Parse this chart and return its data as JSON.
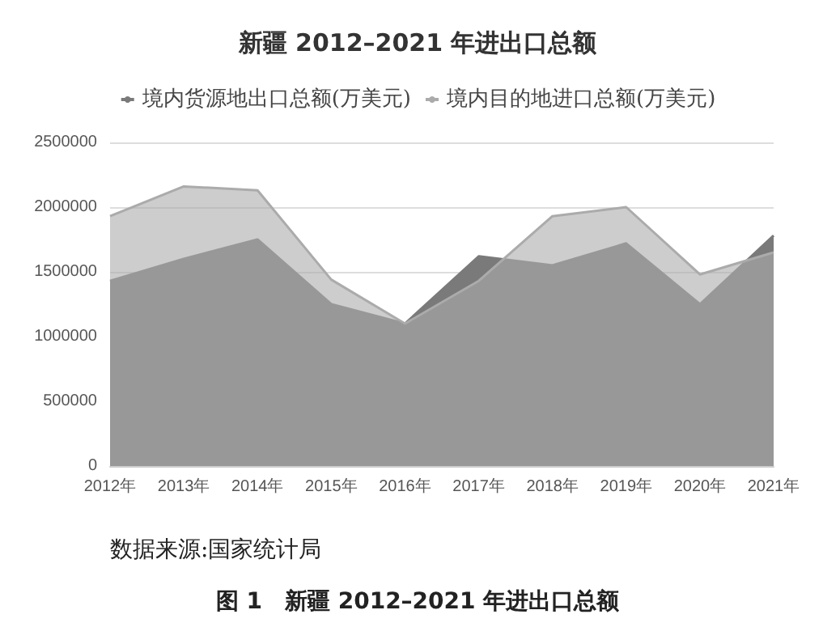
{
  "chart_data": {
    "type": "area",
    "title": "新疆 2012–2021 年进出口总额",
    "categories": [
      "2012年",
      "2013年",
      "2014年",
      "2015年",
      "2016年",
      "2017年",
      "2018年",
      "2019年",
      "2020年",
      "2021年"
    ],
    "series": [
      {
        "name": "境内货源地出口总额(万美元)",
        "color": "#7a7a7a",
        "values": [
          1430000,
          1600000,
          1750000,
          1250000,
          1100000,
          1620000,
          1550000,
          1720000,
          1250000,
          1780000
        ]
      },
      {
        "name": "境内目的地进口总额(万美元)",
        "color": "#ababab",
        "values": [
          1930000,
          2160000,
          2130000,
          1440000,
          1100000,
          1430000,
          1930000,
          2000000,
          1480000,
          1650000
        ]
      }
    ],
    "ylim": [
      0,
      2500000
    ],
    "yticks": [
      0,
      500000,
      1000000,
      1500000,
      2000000,
      2500000
    ],
    "grid": "y",
    "legend": "top",
    "annotations": [
      "数据来源:国家统计局",
      "图 1　新疆 2012–2021 年进出口总额"
    ]
  }
}
